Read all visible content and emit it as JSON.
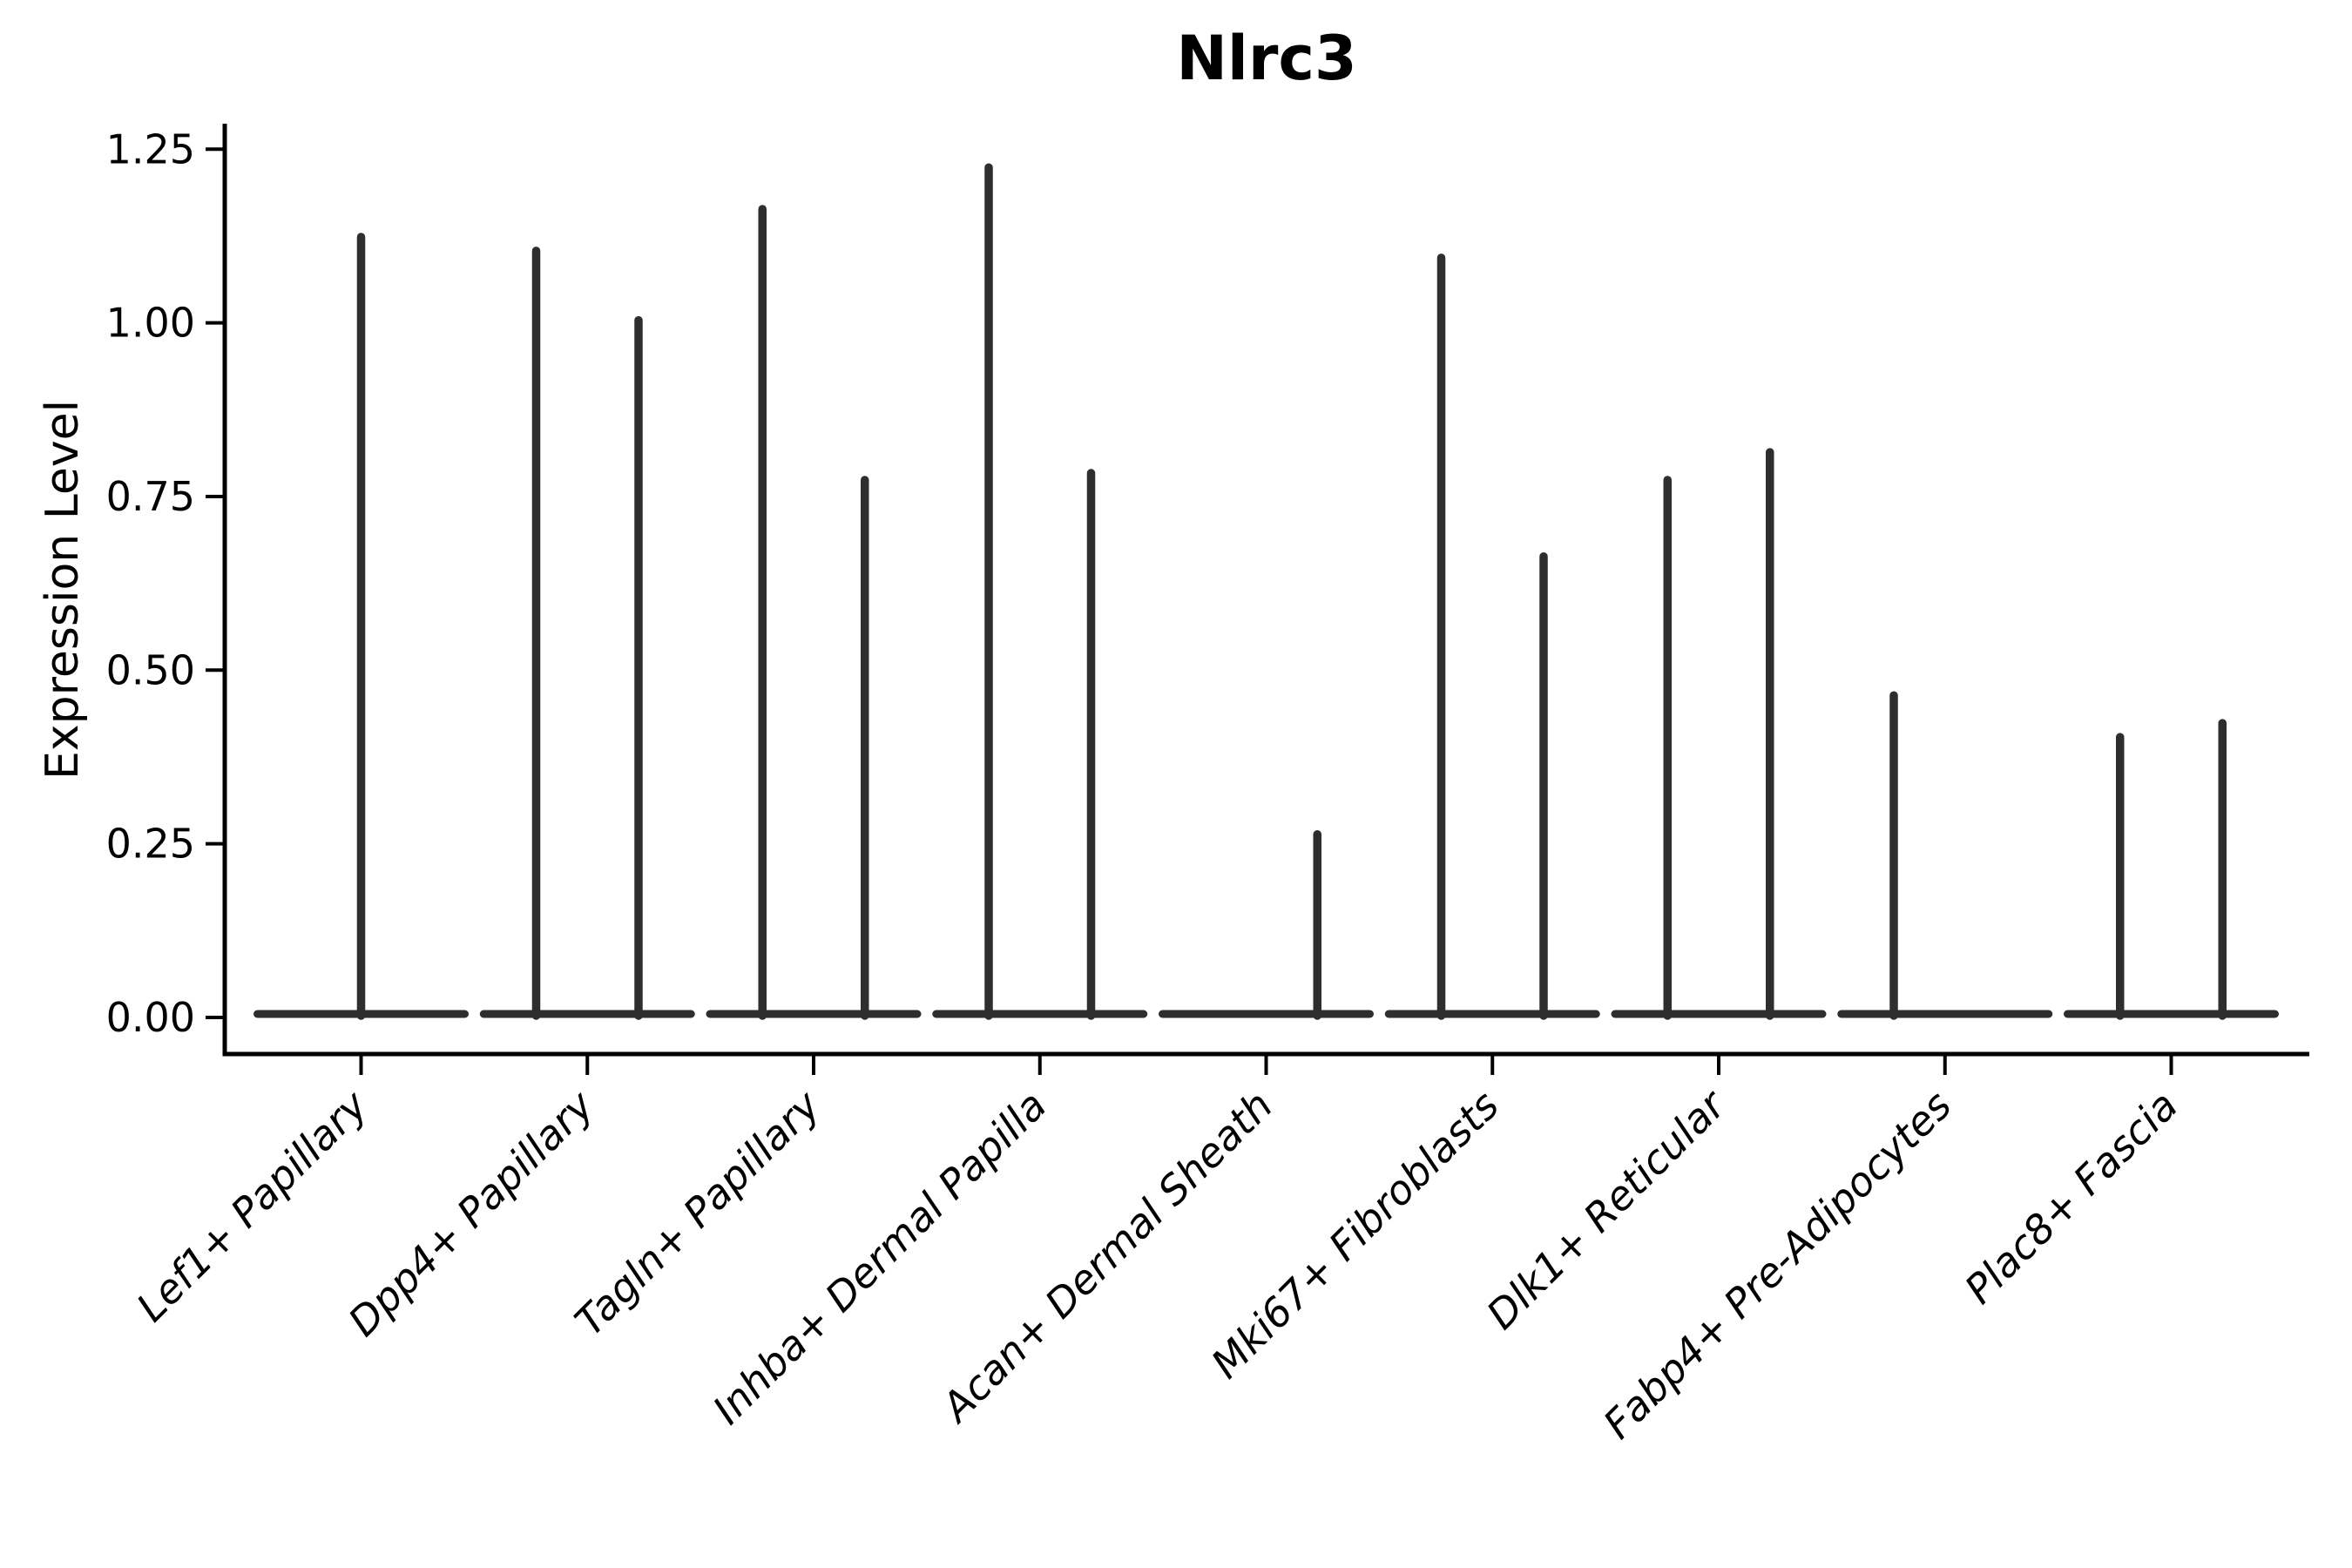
{
  "chart_data": {
    "type": "violin",
    "title": "Nlrc3",
    "ylabel": "Expression Level",
    "xlabel": "",
    "grid": false,
    "legend": "none",
    "ylim": [
      0,
      1.29
    ],
    "axis_color": "#000000",
    "violin_color": "#2e2e2e",
    "yticks": [
      {
        "value": 0.0,
        "label": "0.00"
      },
      {
        "value": 0.25,
        "label": "0.25"
      },
      {
        "value": 0.5,
        "label": "0.50"
      },
      {
        "value": 0.75,
        "label": "0.75"
      },
      {
        "value": 1.0,
        "label": "1.00"
      },
      {
        "value": 1.25,
        "label": "1.25"
      }
    ],
    "categories": [
      {
        "label": "Lef1+ Papillary",
        "violins": [
          {
            "side": "center",
            "max": 1.13
          }
        ]
      },
      {
        "label": "Dpp4+ Papillary",
        "violins": [
          {
            "side": "left",
            "max": 1.11
          },
          {
            "side": "right",
            "max": 1.01
          }
        ]
      },
      {
        "label": "Tagln+ Papillary",
        "violins": [
          {
            "side": "left",
            "max": 1.17
          },
          {
            "side": "right",
            "max": 0.78
          }
        ]
      },
      {
        "label": "Inhba+ Dermal Papilla",
        "violins": [
          {
            "side": "left",
            "max": 1.23
          },
          {
            "side": "right",
            "max": 0.79
          }
        ]
      },
      {
        "label": "Acan+ Dermal Sheath",
        "violins": [
          {
            "side": "left",
            "max": 0.0
          },
          {
            "side": "right",
            "max": 0.27
          }
        ]
      },
      {
        "label": "Mki67+ Fibroblasts",
        "violins": [
          {
            "side": "left",
            "max": 1.1
          },
          {
            "side": "right",
            "max": 0.67
          }
        ]
      },
      {
        "label": "Dlk1+ Reticular",
        "violins": [
          {
            "side": "left",
            "max": 0.78
          },
          {
            "side": "right",
            "max": 0.82
          }
        ]
      },
      {
        "label": "Fabp4+ Pre-Adipocytes",
        "violins": [
          {
            "side": "left",
            "max": 0.47
          },
          {
            "side": "right",
            "max": 0.0
          }
        ]
      },
      {
        "label": "Plac8+ Fascia",
        "violins": [
          {
            "side": "left",
            "max": 0.41
          },
          {
            "side": "right",
            "max": 0.43
          }
        ]
      }
    ]
  }
}
